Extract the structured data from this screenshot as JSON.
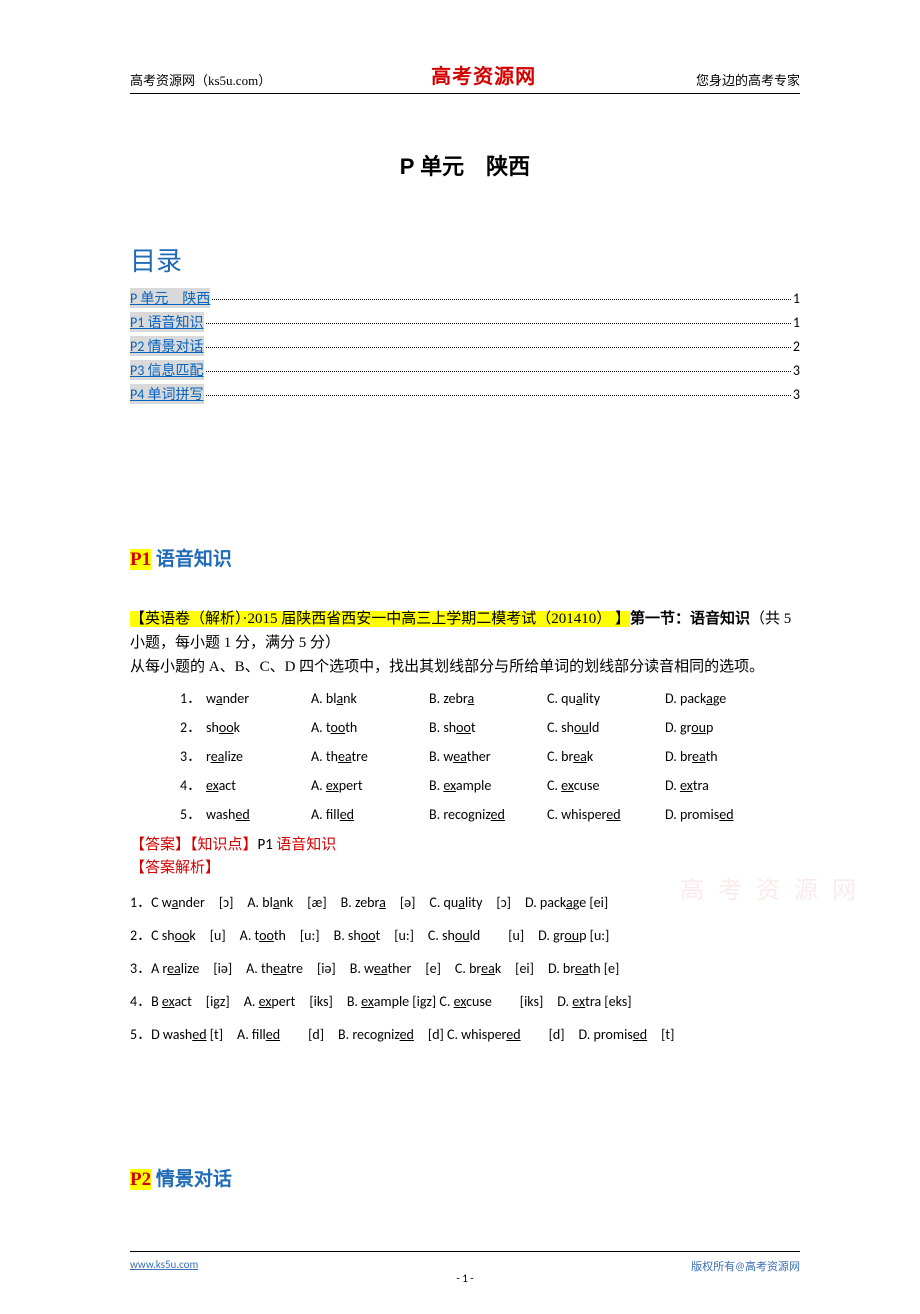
{
  "header": {
    "left": "高考资源网（ks5u.com）",
    "center": "高考资源网",
    "right": "您身边的高考专家"
  },
  "main_title": "P 单元　陕西",
  "toc": {
    "heading": "目录",
    "items": [
      {
        "label": "P 单元　陕西",
        "page": "1"
      },
      {
        "label": "P1 语音知识",
        "page": "1"
      },
      {
        "label": "P2 情景对话",
        "page": "2"
      },
      {
        "label": "P3 信息匹配",
        "page": "3"
      },
      {
        "label": "P4 单词拼写",
        "page": "3"
      }
    ]
  },
  "section_p1": {
    "prefix": "P1",
    "title_rest": " 语音知识",
    "intro_hl": "【英语卷（解析）·2015 届陕西省西安一中高三上学期二模考试（201410） 】",
    "intro_bold": "第一节：语音知识",
    "intro_plain": "（共 5 小题，每小题 1 分，满分 5 分）",
    "intro_line2": "从每小题的 A、B、C、D 四个选项中，找出其划线部分与所给单词的划线部分读音相同的选项。"
  },
  "questions": [
    {
      "n": "1．",
      "word_pre": "w",
      "word_u": "a",
      "word_post": "nder",
      "a_pre": "A. bl",
      "a_u": "a",
      "a_post": "nk",
      "b_pre": "B. zebr",
      "b_u": "a",
      "b_post": "",
      "c_pre": "C. qu",
      "c_u": "a",
      "c_post": "lity",
      "d_pre": "D. pack",
      "d_u": "a",
      "d_post": "ge"
    },
    {
      "n": "2．",
      "word_pre": "sh",
      "word_u": "oo",
      "word_post": "k",
      "a_pre": "A. t",
      "a_u": "oo",
      "a_post": "th",
      "b_pre": "B. sh",
      "b_u": "oo",
      "b_post": "t",
      "c_pre": "C. sh",
      "c_u": "ou",
      "c_post": "ld",
      "d_pre": "D. gr",
      "d_u": "ou",
      "d_post": "p"
    },
    {
      "n": "3．",
      "word_pre": "r",
      "word_u": "ea",
      "word_post": "lize",
      "a_pre": "A. th",
      "a_u": "ea",
      "a_post": "tre",
      "b_pre": "B. w",
      "b_u": "ea",
      "b_post": "ther",
      "c_pre": "C. br",
      "c_u": "ea",
      "c_post": "k",
      "d_pre": "D. br",
      "d_u": "ea",
      "d_post": "th"
    },
    {
      "n": "4．",
      "word_pre": "",
      "word_u": "ex",
      "word_post": "act",
      "a_pre": "A. ",
      "a_u": "ex",
      "a_post": "pert",
      "b_pre": "B. ",
      "b_u": "ex",
      "b_post": "ample",
      "c_pre": "C. ",
      "c_u": "ex",
      "c_post": "cuse",
      "d_pre": "D. ",
      "d_u": "ex",
      "d_post": "tra"
    },
    {
      "n": "5．",
      "word_pre": "wash",
      "word_u": "ed",
      "word_post": "",
      "a_pre": "A. fill",
      "a_u": "ed",
      "a_post": "",
      "b_pre": "B. recogniz",
      "b_u": "ed",
      "b_post": "",
      "c_pre": "C. whisper",
      "c_u": "ed",
      "c_post": "",
      "d_pre": "D. promis",
      "d_u": "ed",
      "d_post": ""
    }
  ],
  "answer_block": {
    "line1_red1": "【答案】【知识点】",
    "line1_black": "P1 ",
    "line1_red2": "语音知识",
    "line2": "【答案解析】"
  },
  "explanations": [
    "1．C w<u>a</u>nder　[ɔ]　A. bl<u>a</u>nk　[æ]　B. zebr<u>a</u>　[ə]　C. qu<u>a</u>lity　[ɔ]　D. pack<u>a</u>ge [ei]",
    "2．C sh<u>oo</u>k　[u]　A. t<u>oo</u>th　[u:]　B. sh<u>oo</u>t　[u:]　C. sh<u>ou</u>ld　　[u]　D. gr<u>ou</u>p [u:]",
    "3．A r<u>ea</u>lize　[iə]　A. th<u>ea</u>tre　[iə]　B. w<u>ea</u>ther　[e]　C. br<u>ea</u>k　[ei]　D. br<u>ea</u>th [e]",
    "4．B <u>ex</u>act　[igz]　A. <u>ex</u>pert　[iks]　B. <u>ex</u>ample [igz] C. <u>ex</u>cuse　　[iks]　D. <u>ex</u>tra [eks]",
    "5．D wash<u>ed</u>  [t]　A. fill<u>ed</u>　　[d]　B. recogniz<u>ed</u>　[d] C. whisper<u>ed</u>　　[d]　D. promis<u>ed</u>　[t]"
  ],
  "section_p2": {
    "prefix": "P2",
    "title_rest": " 情景对话"
  },
  "footer": {
    "left": "www.ks5u.com",
    "center": "- 1 -",
    "right": "版权所有@高考资源网"
  },
  "watermark": "高 考 资 源 网",
  "colors": {
    "brand_red": "#d40000",
    "link_blue": "#0563c1",
    "heading_blue": "#1f6bb8",
    "highlight": "#ffff00",
    "toc_shade": "#d9d9d9",
    "footer_blue": "#3b6fb6"
  },
  "typography": {
    "body_font": "SimSun",
    "title_fontsize": 22,
    "toc_heading_fontsize": 26,
    "section_heading_fontsize": 19,
    "body_fontsize": 15,
    "table_fontsize": 14
  }
}
